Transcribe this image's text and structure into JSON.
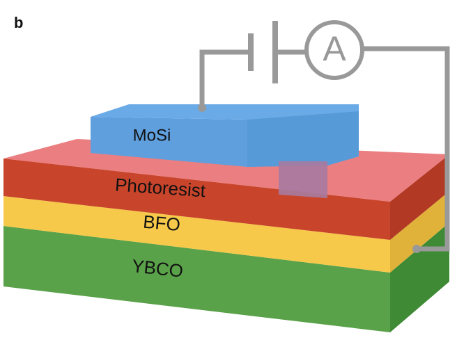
{
  "panel_label": "b",
  "layers": {
    "mosi": "MoSi",
    "photoresist": "Photoresist",
    "bfo": "BFO",
    "ybco": "YBCO"
  },
  "ammeter": "A"
}
